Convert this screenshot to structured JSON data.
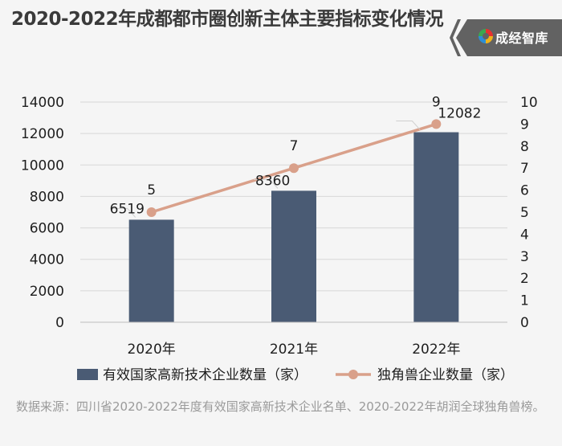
{
  "title": "2020-2022年成都都市圈创新主体主要指标变化情况",
  "logo": {
    "text": "成经智库",
    "icon": "logo-badge-icon"
  },
  "source": "数据来源：四川省2020-2022年度有效国家高新技术企业名单、2020-2022年胡润全球独角兽榜。",
  "chart_data": {
    "type": "bar",
    "categories": [
      "2020年",
      "2021年",
      "2022年"
    ],
    "series": [
      {
        "name": "有效国家高新技术企业数量（家）",
        "type": "bar",
        "axis": "left",
        "color": "#4a5b74",
        "values": [
          6519,
          8360,
          12082
        ]
      },
      {
        "name": "独角兽企业数量（家）",
        "type": "line",
        "axis": "right",
        "color": "#d9a08a",
        "values": [
          5,
          7,
          9
        ]
      }
    ],
    "y_left": {
      "min": 0,
      "max": 14000,
      "step": 2000,
      "ticks": [
        "0",
        "2000",
        "4000",
        "6000",
        "8000",
        "10000",
        "12000",
        "14000"
      ]
    },
    "y_right": {
      "min": 0,
      "max": 10,
      "step": 1,
      "ticks": [
        "0",
        "1",
        "2",
        "3",
        "4",
        "5",
        "6",
        "7",
        "8",
        "9",
        "10"
      ]
    },
    "grid": true,
    "legend_position": "bottom"
  }
}
